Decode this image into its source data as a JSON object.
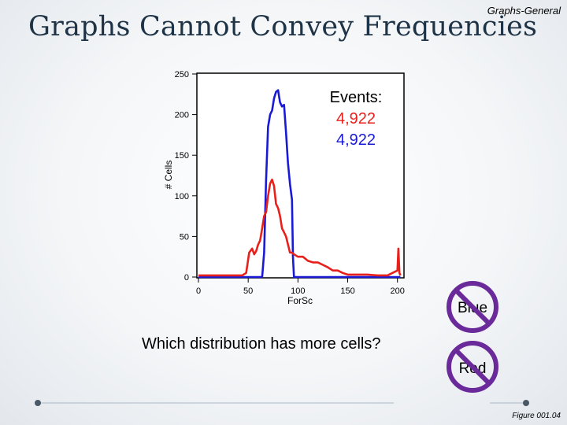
{
  "slide": {
    "title": "Graphs Cannot Convey Frequencies",
    "category": "Graphs-General",
    "question": "Which distribution has more cells?",
    "figure_ref": "Figure 001.04"
  },
  "choices": [
    {
      "label": "Blue",
      "crossed_out": true
    },
    {
      "label": "Red",
      "crossed_out": true
    }
  ],
  "colors": {
    "blue": "#1a1ad6",
    "red": "#e8201c",
    "prohibit": "#6a2a9a",
    "title": "#1f3346",
    "divider": "#aab8c6"
  },
  "chart_data": {
    "type": "line",
    "xlabel": "ForSc",
    "ylabel": "# Cells",
    "xlim": [
      0,
      205
    ],
    "ylim": [
      0,
      250
    ],
    "xticks": [
      0,
      50,
      100,
      150,
      200
    ],
    "yticks": [
      0,
      50,
      100,
      150,
      200,
      250
    ],
    "grid": false,
    "annotation": {
      "title": "Events:",
      "values": [
        {
          "text": "4,922",
          "color": "#e8201c"
        },
        {
          "text": "4,922",
          "color": "#1a1ad6"
        }
      ]
    },
    "series": [
      {
        "color": "#1a1ad6",
        "x": [
          0,
          64,
          66,
          68,
          70,
          72,
          74,
          76,
          78,
          80,
          82,
          84,
          86,
          88,
          90,
          92,
          94,
          95,
          96,
          150,
          200,
          203
        ],
        "y": [
          0,
          0,
          30,
          120,
          185,
          200,
          205,
          220,
          228,
          230,
          215,
          210,
          212,
          178,
          140,
          115,
          95,
          25,
          0,
          0,
          0,
          0
        ]
      },
      {
        "color": "#e8201c",
        "x": [
          0,
          40,
          44,
          48,
          51,
          54,
          56,
          58,
          60,
          62,
          64,
          66,
          68,
          70,
          72,
          74,
          76,
          78,
          80,
          82,
          84,
          86,
          88,
          90,
          92,
          94,
          96,
          100,
          105,
          110,
          115,
          120,
          125,
          130,
          135,
          140,
          145,
          150,
          160,
          170,
          180,
          190,
          200,
          201,
          202,
          203
        ],
        "y": [
          2,
          2,
          2,
          5,
          30,
          35,
          28,
          32,
          40,
          45,
          60,
          75,
          80,
          100,
          115,
          120,
          112,
          90,
          85,
          75,
          60,
          55,
          50,
          40,
          30,
          30,
          28,
          25,
          25,
          20,
          18,
          18,
          15,
          12,
          8,
          8,
          5,
          3,
          3,
          3,
          2,
          2,
          8,
          35,
          5,
          2
        ]
      }
    ]
  }
}
